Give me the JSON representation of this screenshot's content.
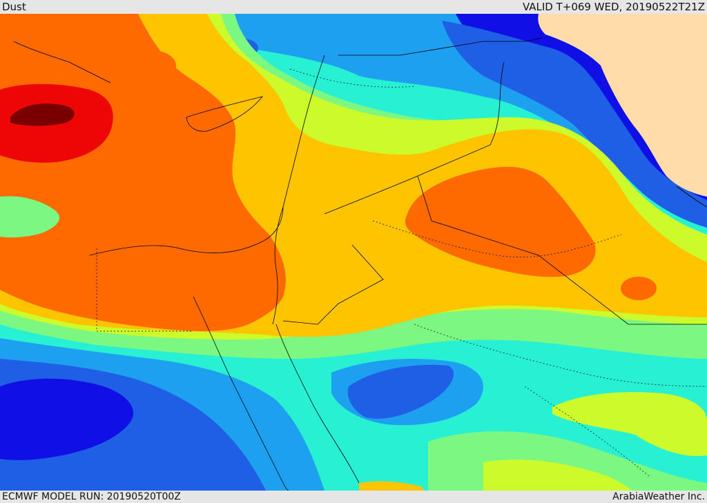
{
  "header": {
    "title": "Dust",
    "valid_time": "VALID T+069 WED, 20190522T21Z"
  },
  "footer": {
    "model_run": "ECMWF MODEL RUN: 20190520T00Z",
    "credit": "ArabiaWeather Inc."
  },
  "map": {
    "variable": "dust",
    "region": "Eastern Mediterranean / Middle East",
    "palette": {
      "dark_blue": "#1010e6",
      "blue": "#1e5fe6",
      "sky": "#1ea0f0",
      "cyan": "#28f0d2",
      "green": "#7cf882",
      "lime": "#cdfa2a",
      "yellow": "#ffc400",
      "orange": "#ff6a00",
      "red": "#ee0505",
      "dark_red": "#7a0000",
      "land": "#ffdcaa"
    }
  }
}
